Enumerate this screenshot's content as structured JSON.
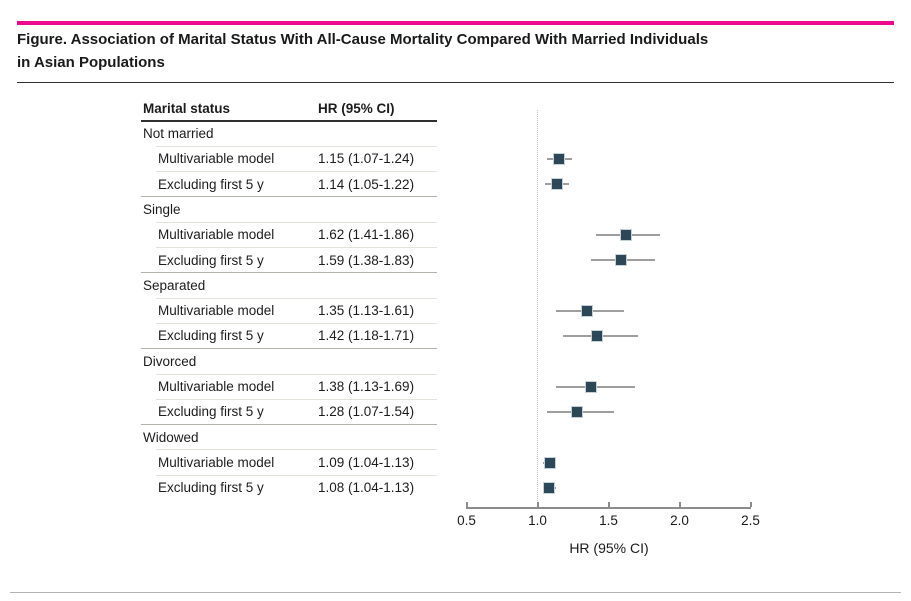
{
  "page": {
    "title_line1": "Figure. Association of Marital Status With All-Cause Mortality Compared With Married Individuals",
    "title_line2": "in Asian Populations"
  },
  "table": {
    "col1_header": "Marital status",
    "col2_header": "HR (95% CI)"
  },
  "chart_data": {
    "type": "forest",
    "xlabel": "HR (95% CI)",
    "xlim": [
      0.5,
      2.5
    ],
    "x_ticks": [
      0.5,
      1.0,
      1.5,
      2.0,
      2.5
    ],
    "reference_line": 1.0,
    "grid": false,
    "legend": "none",
    "groups": [
      {
        "label": "Not married",
        "rows": [
          {
            "label": "Multivariable model",
            "hr_text": "1.15 (1.07-1.24)",
            "est": 1.15,
            "lo": 1.07,
            "hi": 1.24
          },
          {
            "label": "Excluding first 5 y",
            "hr_text": "1.14 (1.05-1.22)",
            "est": 1.14,
            "lo": 1.05,
            "hi": 1.22
          }
        ]
      },
      {
        "label": "Single",
        "rows": [
          {
            "label": "Multivariable model",
            "hr_text": "1.62 (1.41-1.86)",
            "est": 1.62,
            "lo": 1.41,
            "hi": 1.86
          },
          {
            "label": "Excluding first 5 y",
            "hr_text": "1.59 (1.38-1.83)",
            "est": 1.59,
            "lo": 1.38,
            "hi": 1.83
          }
        ]
      },
      {
        "label": "Separated",
        "rows": [
          {
            "label": "Multivariable model",
            "hr_text": "1.35 (1.13-1.61)",
            "est": 1.35,
            "lo": 1.13,
            "hi": 1.61
          },
          {
            "label": "Excluding first 5 y",
            "hr_text": "1.42 (1.18-1.71)",
            "est": 1.42,
            "lo": 1.18,
            "hi": 1.71
          }
        ]
      },
      {
        "label": "Divorced",
        "rows": [
          {
            "label": "Multivariable model",
            "hr_text": "1.38 (1.13-1.69)",
            "est": 1.38,
            "lo": 1.13,
            "hi": 1.69
          },
          {
            "label": "Excluding first 5 y",
            "hr_text": "1.28 (1.07-1.54)",
            "est": 1.28,
            "lo": 1.07,
            "hi": 1.54
          }
        ]
      },
      {
        "label": "Widowed",
        "rows": [
          {
            "label": "Multivariable model",
            "hr_text": "1.09 (1.04-1.13)",
            "est": 1.09,
            "lo": 1.04,
            "hi": 1.13
          },
          {
            "label": "Excluding first 5 y",
            "hr_text": "1.08 (1.04-1.13)",
            "est": 1.08,
            "lo": 1.04,
            "hi": 1.13
          }
        ]
      }
    ]
  },
  "colors": {
    "accent_bar": "#e90b8b",
    "marker_fill": "#2e4756",
    "marker_border": "#c3d2da",
    "ci_line": "#9e9e9e",
    "axis": "#8c8c8c",
    "reference_dotted": "#c4c4c4"
  }
}
